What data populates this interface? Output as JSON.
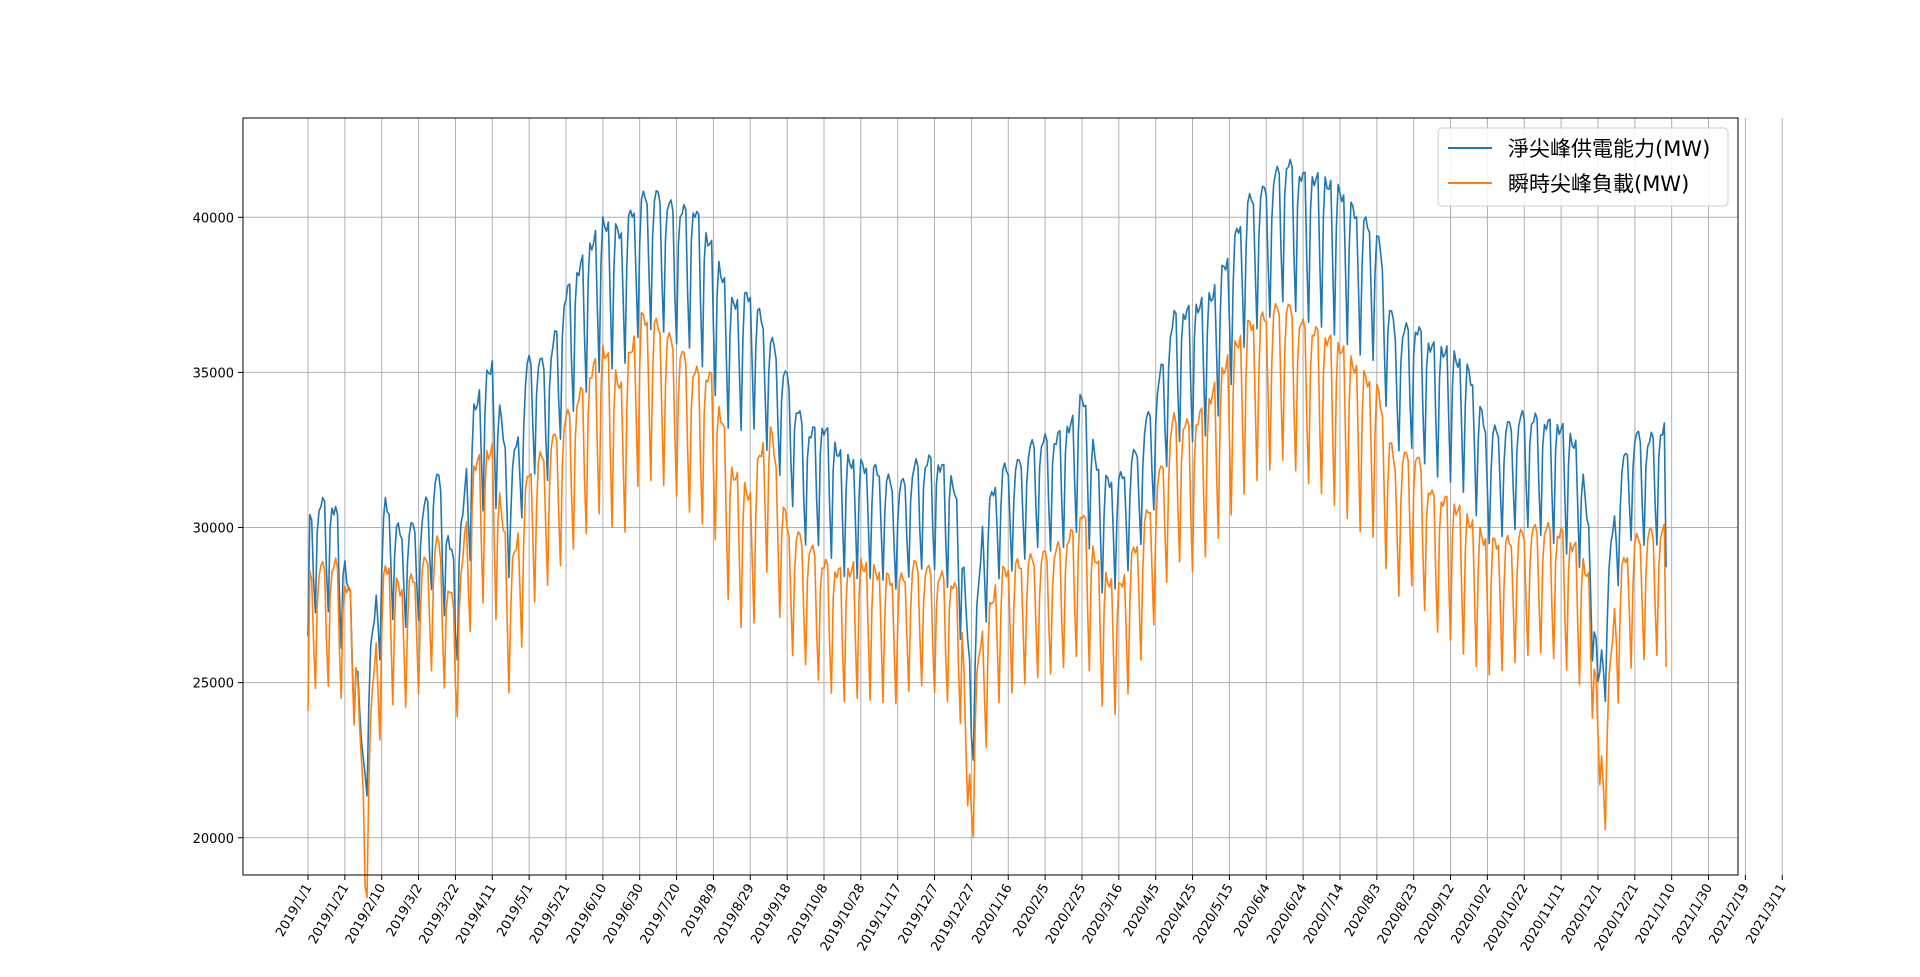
{
  "chart_data": {
    "type": "line",
    "title": "",
    "xlabel": "",
    "ylabel": "",
    "ylim": [
      18800,
      43200
    ],
    "y_ticks": [
      20000,
      25000,
      30000,
      35000,
      40000
    ],
    "y_tick_labels": [
      "20000",
      "25000",
      "30000",
      "35000",
      "40000"
    ],
    "grid": true,
    "legend_position": "top-right",
    "x_start_date": "2019-01-01",
    "x_end_date": "2021-03-15",
    "x_ticks": [
      "2019/1/1",
      "2019/1/21",
      "2019/2/10",
      "2019/3/2",
      "2019/3/22",
      "2019/4/11",
      "2019/5/1",
      "2019/5/21",
      "2019/6/10",
      "2019/6/30",
      "2019/7/20",
      "2019/8/9",
      "2019/8/29",
      "2019/9/18",
      "2019/10/8",
      "2019/10/28",
      "2019/11/17",
      "2019/12/7",
      "2019/12/27",
      "2020/1/16",
      "2020/2/5",
      "2020/2/25",
      "2020/3/16",
      "2020/4/5",
      "2020/4/25",
      "2020/5/15",
      "2020/6/4",
      "2020/6/24",
      "2020/7/14",
      "2020/8/3",
      "2020/8/23",
      "2020/9/12",
      "2020/10/2",
      "2020/10/22",
      "2020/11/11",
      "2020/12/1",
      "2020/12/21",
      "2021/1/10",
      "2021/1/30",
      "2021/2/19",
      "2021/3/11"
    ],
    "series": [
      {
        "name": "淨尖峰供電能力(MW)",
        "color": "#1f77b4",
        "values": [
          [
            0,
            26500
          ],
          [
            1,
            30200
          ],
          [
            7,
            30800
          ],
          [
            15,
            30600
          ],
          [
            25,
            27000
          ],
          [
            30,
            22400
          ],
          [
            34,
            26000
          ],
          [
            42,
            30800
          ],
          [
            50,
            29800
          ],
          [
            60,
            30100
          ],
          [
            70,
            31800
          ],
          [
            80,
            28500
          ],
          [
            90,
            33800
          ],
          [
            100,
            35300
          ],
          [
            110,
            31500
          ],
          [
            120,
            35500
          ],
          [
            130,
            35200
          ],
          [
            140,
            37500
          ],
          [
            150,
            38700
          ],
          [
            160,
            39800
          ],
          [
            170,
            39500
          ],
          [
            180,
            40600
          ],
          [
            190,
            40700
          ],
          [
            200,
            40200
          ],
          [
            210,
            40200
          ],
          [
            220,
            38900
          ],
          [
            230,
            37200
          ],
          [
            240,
            37500
          ],
          [
            250,
            36200
          ],
          [
            260,
            34800
          ],
          [
            270,
            33000
          ],
          [
            280,
            33200
          ],
          [
            290,
            32200
          ],
          [
            300,
            32000
          ],
          [
            310,
            31800
          ],
          [
            320,
            31200
          ],
          [
            330,
            32000
          ],
          [
            340,
            32200
          ],
          [
            350,
            31500
          ],
          [
            355,
            29500
          ],
          [
            360,
            24600
          ],
          [
            366,
            30000
          ],
          [
            375,
            31800
          ],
          [
            385,
            32000
          ],
          [
            395,
            32800
          ],
          [
            405,
            32800
          ],
          [
            415,
            33400
          ],
          [
            420,
            34300
          ],
          [
            430,
            31500
          ],
          [
            440,
            31500
          ],
          [
            450,
            32500
          ],
          [
            460,
            34300
          ],
          [
            470,
            36800
          ],
          [
            480,
            37000
          ],
          [
            490,
            37400
          ],
          [
            500,
            38800
          ],
          [
            510,
            40500
          ],
          [
            520,
            40900
          ],
          [
            530,
            41800
          ],
          [
            540,
            41300
          ],
          [
            550,
            41200
          ],
          [
            560,
            40800
          ],
          [
            570,
            40000
          ],
          [
            580,
            39500
          ],
          [
            590,
            36200
          ],
          [
            600,
            36500
          ],
          [
            610,
            35800
          ],
          [
            620,
            35600
          ],
          [
            630,
            35000
          ],
          [
            640,
            33000
          ],
          [
            650,
            33200
          ],
          [
            660,
            33600
          ],
          [
            670,
            33400
          ],
          [
            680,
            33200
          ],
          [
            690,
            32500
          ],
          [
            697,
            29000
          ],
          [
            700,
            24900
          ],
          [
            705,
            28000
          ],
          [
            710,
            31200
          ],
          [
            718,
            33000
          ],
          [
            728,
            32800
          ],
          [
            736,
            33200
          ],
          [
            737,
            28600
          ]
        ]
      },
      {
        "name": "瞬時尖峰負載(MW)",
        "color": "#ff7f0e",
        "values": [
          [
            0,
            23900
          ],
          [
            1,
            28500
          ],
          [
            7,
            28700
          ],
          [
            15,
            28800
          ],
          [
            25,
            27600
          ],
          [
            31,
            20000
          ],
          [
            35,
            25000
          ],
          [
            42,
            28800
          ],
          [
            50,
            28000
          ],
          [
            60,
            28500
          ],
          [
            70,
            29600
          ],
          [
            80,
            27200
          ],
          [
            90,
            32000
          ],
          [
            100,
            32500
          ],
          [
            110,
            28500
          ],
          [
            120,
            31800
          ],
          [
            130,
            32500
          ],
          [
            140,
            33500
          ],
          [
            150,
            34500
          ],
          [
            160,
            35800
          ],
          [
            170,
            34500
          ],
          [
            180,
            36800
          ],
          [
            190,
            36500
          ],
          [
            200,
            35800
          ],
          [
            210,
            35000
          ],
          [
            220,
            34800
          ],
          [
            230,
            31800
          ],
          [
            240,
            31000
          ],
          [
            250,
            33500
          ],
          [
            260,
            30000
          ],
          [
            270,
            29500
          ],
          [
            280,
            28800
          ],
          [
            290,
            28500
          ],
          [
            300,
            28800
          ],
          [
            310,
            28500
          ],
          [
            320,
            28200
          ],
          [
            330,
            28800
          ],
          [
            340,
            28500
          ],
          [
            350,
            28200
          ],
          [
            355,
            27500
          ],
          [
            358,
            21000
          ],
          [
            364,
            26000
          ],
          [
            375,
            28500
          ],
          [
            385,
            28800
          ],
          [
            395,
            29000
          ],
          [
            405,
            29200
          ],
          [
            415,
            29800
          ],
          [
            420,
            30500
          ],
          [
            430,
            28500
          ],
          [
            440,
            28000
          ],
          [
            450,
            29500
          ],
          [
            460,
            31200
          ],
          [
            470,
            33500
          ],
          [
            480,
            33200
          ],
          [
            490,
            34200
          ],
          [
            500,
            35500
          ],
          [
            510,
            36500
          ],
          [
            520,
            36800
          ],
          [
            530,
            37200
          ],
          [
            540,
            36500
          ],
          [
            550,
            36200
          ],
          [
            560,
            35800
          ],
          [
            570,
            35000
          ],
          [
            580,
            34500
          ],
          [
            590,
            32000
          ],
          [
            600,
            32500
          ],
          [
            610,
            31000
          ],
          [
            620,
            30800
          ],
          [
            630,
            30200
          ],
          [
            640,
            29500
          ],
          [
            650,
            29500
          ],
          [
            660,
            29800
          ],
          [
            670,
            30000
          ],
          [
            680,
            29800
          ],
          [
            690,
            29200
          ],
          [
            697,
            28000
          ],
          [
            701,
            21900
          ],
          [
            706,
            25000
          ],
          [
            710,
            28200
          ],
          [
            718,
            29500
          ],
          [
            728,
            29800
          ],
          [
            736,
            29900
          ],
          [
            737,
            25600
          ]
        ]
      }
    ]
  }
}
